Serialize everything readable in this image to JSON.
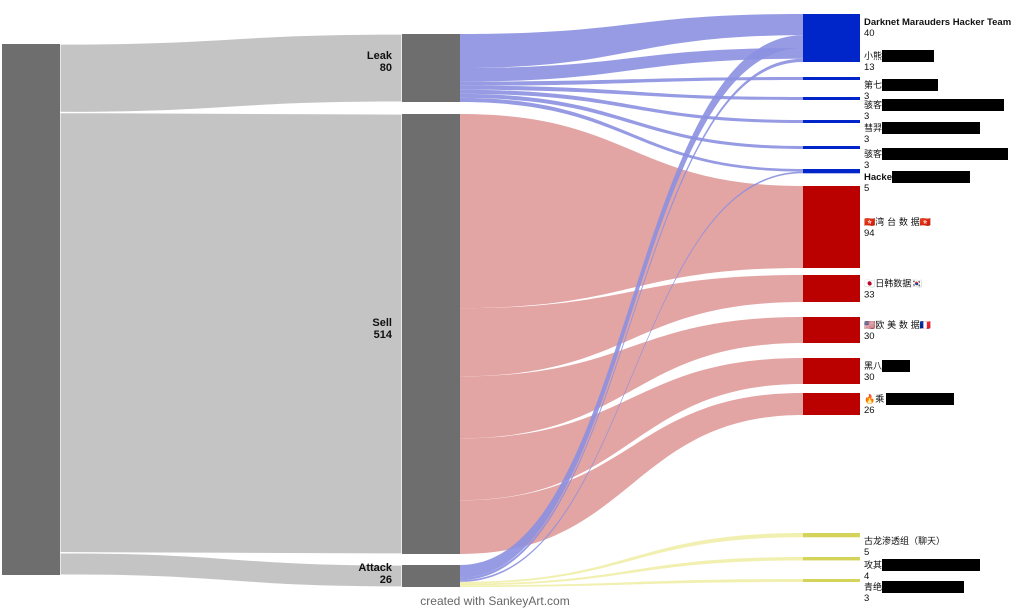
{
  "chart_data": {
    "type": "sankey",
    "source": {
      "name": "",
      "value": 620,
      "color": "#6e6e6e"
    },
    "stages": [
      {
        "name": "Leak",
        "value": 80,
        "color": "#6e6e6e",
        "link_color": "#c4c4c4"
      },
      {
        "name": "Sell",
        "value": 514,
        "color": "#6e6e6e",
        "link_color": "#c4c4c4"
      },
      {
        "name": "Attack",
        "value": 26,
        "color": "#6e6e6e",
        "link_color": "#c4c4c4"
      }
    ],
    "targets": [
      {
        "label": "Darknet Marauders Hacker Team",
        "value": 40,
        "color": "#0025c8",
        "bold": true,
        "redacted": false
      },
      {
        "label": "小熊",
        "value": 13,
        "color": "#0025c8",
        "bold": false,
        "redacted": true
      },
      {
        "label": "第七",
        "value": 3,
        "color": "#0025c8",
        "bold": false,
        "redacted": true
      },
      {
        "label": "骇客",
        "value": 3,
        "color": "#0025c8",
        "bold": false,
        "redacted": true
      },
      {
        "label": "彗羿",
        "value": 3,
        "color": "#0025c8",
        "bold": false,
        "redacted": true
      },
      {
        "label": "骇客",
        "value": 3,
        "color": "#0025c8",
        "bold": false,
        "redacted": true
      },
      {
        "label": "Hacke",
        "value": 5,
        "color": "#0025c8",
        "bold": true,
        "redacted": true
      },
      {
        "label": "🇭🇰湾 台 数 据🇭🇰",
        "value": 94,
        "color": "#bb0000",
        "bold": false,
        "redacted": false
      },
      {
        "label": "🇯🇵日韩数据🇰🇷",
        "value": 33,
        "color": "#bb0000",
        "bold": false,
        "redacted": false
      },
      {
        "label": "🇺🇸欧 美 数 据🇫🇷",
        "value": 30,
        "color": "#bb0000",
        "bold": false,
        "redacted": false
      },
      {
        "label": "黑八",
        "value": 30,
        "color": "#bb0000",
        "bold": false,
        "redacted": true
      },
      {
        "label": "🔥乘",
        "value": 26,
        "color": "#bb0000",
        "bold": false,
        "redacted": true
      },
      {
        "label": "古龙渗透组（聊天）",
        "value": 5,
        "color": "#d4d45a",
        "bold": false,
        "redacted": false
      },
      {
        "label": "攻其",
        "value": 4,
        "color": "#d4d45a",
        "bold": false,
        "redacted": true
      },
      {
        "label": "青绝",
        "value": 3,
        "color": "#d4d45a",
        "bold": false,
        "redacted": true
      }
    ],
    "links": [
      {
        "from": "Leak",
        "to": 0,
        "value": 25,
        "color": "#8b90e0"
      },
      {
        "from": "Leak",
        "to": 1,
        "value": 10,
        "color": "#8b90e0"
      },
      {
        "from": "Leak",
        "to": 2,
        "value": 3,
        "color": "#8b90e0"
      },
      {
        "from": "Leak",
        "to": 3,
        "value": 3,
        "color": "#8b90e0"
      },
      {
        "from": "Leak",
        "to": 4,
        "value": 3,
        "color": "#8b90e0"
      },
      {
        "from": "Leak",
        "to": 5,
        "value": 3,
        "color": "#8b90e0"
      },
      {
        "from": "Leak",
        "to": 6,
        "value": 3,
        "color": "#8b90e0"
      },
      {
        "from": "Sell",
        "to": 7,
        "value": 94,
        "color": "#e09a9a"
      },
      {
        "from": "Sell",
        "to": 8,
        "value": 33,
        "color": "#e09a9a"
      },
      {
        "from": "Sell",
        "to": 9,
        "value": 30,
        "color": "#e09a9a"
      },
      {
        "from": "Sell",
        "to": 10,
        "value": 30,
        "color": "#e09a9a"
      },
      {
        "from": "Sell",
        "to": 11,
        "value": 26,
        "color": "#e09a9a"
      },
      {
        "from": "Attack",
        "to": 0,
        "value": 15,
        "color": "#8b90e0"
      },
      {
        "from": "Attack",
        "to": 1,
        "value": 3,
        "color": "#8b90e0"
      },
      {
        "from": "Attack",
        "to": 6,
        "value": 2,
        "color": "#8b90e0"
      },
      {
        "from": "Attack",
        "to": 12,
        "value": 2,
        "color": "#f0eea8"
      },
      {
        "from": "Attack",
        "to": 13,
        "value": 2,
        "color": "#f0eea8"
      },
      {
        "from": "Attack",
        "to": 14,
        "value": 2,
        "color": "#f0eea8"
      }
    ]
  },
  "footer": {
    "credit": "created with SankeyArt.com"
  }
}
